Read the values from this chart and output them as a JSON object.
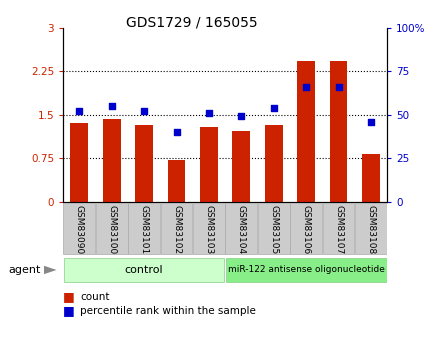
{
  "title": "GDS1729 / 165055",
  "categories": [
    "GSM83090",
    "GSM83100",
    "GSM83101",
    "GSM83102",
    "GSM83103",
    "GSM83104",
    "GSM83105",
    "GSM83106",
    "GSM83107",
    "GSM83108"
  ],
  "bar_values": [
    1.35,
    1.42,
    1.32,
    0.72,
    1.28,
    1.22,
    1.33,
    2.42,
    2.43,
    0.82
  ],
  "dot_values": [
    52,
    55,
    52,
    40,
    51,
    49,
    54,
    66,
    66,
    46
  ],
  "bar_color": "#cc2200",
  "dot_color": "#0000cc",
  "ylim_left": [
    0,
    3
  ],
  "ylim_right": [
    0,
    100
  ],
  "yticks_left": [
    0,
    0.75,
    1.5,
    2.25,
    3
  ],
  "ytick_labels_left": [
    "0",
    "0.75",
    "1.5",
    "2.25",
    "3"
  ],
  "yticks_right": [
    0,
    25,
    50,
    75,
    100
  ],
  "ytick_labels_right": [
    "0",
    "25",
    "50",
    "75",
    "100%"
  ],
  "hlines": [
    0.75,
    1.5,
    2.25
  ],
  "n_control": 5,
  "n_treatment": 5,
  "control_label": "control",
  "treatment_label": "miR-122 antisense oligonucleotide",
  "agent_label": "agent",
  "legend_bar_label": "count",
  "legend_dot_label": "percentile rank within the sample",
  "control_color": "#ccffcc",
  "treatment_color": "#88ee88",
  "tick_label_color": "#cccccc",
  "bar_width": 0.55
}
